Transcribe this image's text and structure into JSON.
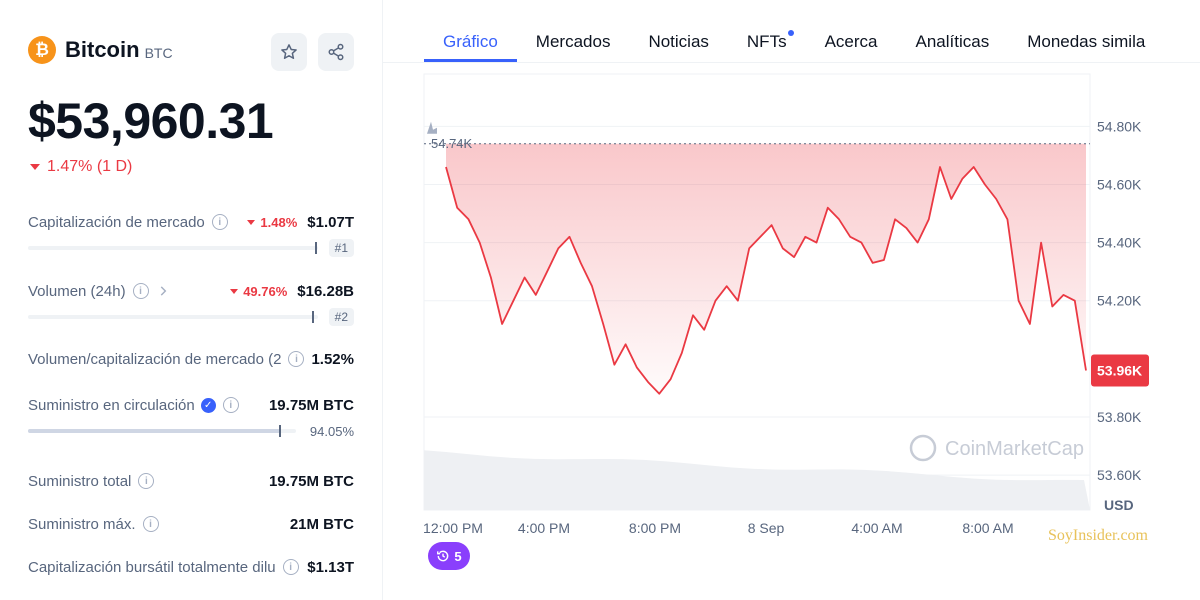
{
  "coin": {
    "logo_symbol": "₿",
    "name": "Bitcoin",
    "ticker": "BTC",
    "price": "$53,960.31",
    "change": "1.47% (1 D)",
    "change_color": "#ea3943"
  },
  "actions": {
    "star_icon": "star-icon",
    "share_icon": "share-icon"
  },
  "stats": {
    "market_cap": {
      "label": "Capitalización de mercado",
      "change": "1.48%",
      "value": "$1.07T",
      "rank": "#1"
    },
    "volume": {
      "label": "Volumen (24h)",
      "change": "49.76%",
      "value": "$16.28B",
      "rank": "#2"
    },
    "vol_mcap": {
      "label": "Volumen/capitalización de mercado (2",
      "value": "1.52%"
    },
    "circulating": {
      "label": "Suministro en circulación",
      "value": "19.75M BTC",
      "percent": "94.05%",
      "fraction": 0.9405
    },
    "total_supply": {
      "label": "Suministro total",
      "value": "19.75M BTC"
    },
    "max_supply": {
      "label": "Suministro máx.",
      "value": "21M BTC"
    },
    "fdv": {
      "label": "Capitalización bursátil totalmente dilu",
      "value": "$1.13T"
    }
  },
  "tabs": [
    {
      "label": "Gráfico",
      "active": true
    },
    {
      "label": "Mercados"
    },
    {
      "label": "Noticias"
    },
    {
      "label": "NFTs",
      "has_dot": true
    },
    {
      "label": "Acerca"
    },
    {
      "label": "Analíticas"
    },
    {
      "label": "Monedas simila"
    }
  ],
  "chart_data": {
    "type": "line",
    "currency": "USD",
    "y_ticks": [
      "54.80K",
      "54.60K",
      "54.40K",
      "54.20K",
      "53.80K",
      "53.60K"
    ],
    "ylim": [
      53.48,
      54.98
    ],
    "x_ticks": [
      "12:00 PM",
      "4:00 PM",
      "8:00 PM",
      "8 Sep",
      "4:00 AM",
      "8:00 AM"
    ],
    "high_label": "54.74K",
    "high_value": 54.74,
    "current_label": "53.96K",
    "current_value": 53.96,
    "line_color": "#ea3943",
    "watermark": "CoinMarketCap",
    "series": [
      {
        "values": [
          54.66,
          54.52,
          54.48,
          54.4,
          54.28,
          54.12,
          54.2,
          54.28,
          54.22,
          54.3,
          54.38,
          54.42,
          54.33,
          54.25,
          54.12,
          53.98,
          54.05,
          53.97,
          53.92,
          53.88,
          53.93,
          54.02,
          54.15,
          54.1,
          54.2,
          54.25,
          54.2,
          54.38,
          54.42,
          54.46,
          54.38,
          54.35,
          54.42,
          54.4,
          54.52,
          54.48,
          54.42,
          54.4,
          54.33,
          54.34,
          54.48,
          54.45,
          54.4,
          54.48,
          54.66,
          54.55,
          54.62,
          54.66,
          54.6,
          54.55,
          54.48,
          54.2,
          54.12,
          54.4,
          54.18,
          54.22,
          54.2,
          53.96
        ]
      }
    ]
  },
  "events_badge": {
    "icon": "clock-history-icon",
    "count": "5"
  },
  "credit": "SoyInsider.com"
}
